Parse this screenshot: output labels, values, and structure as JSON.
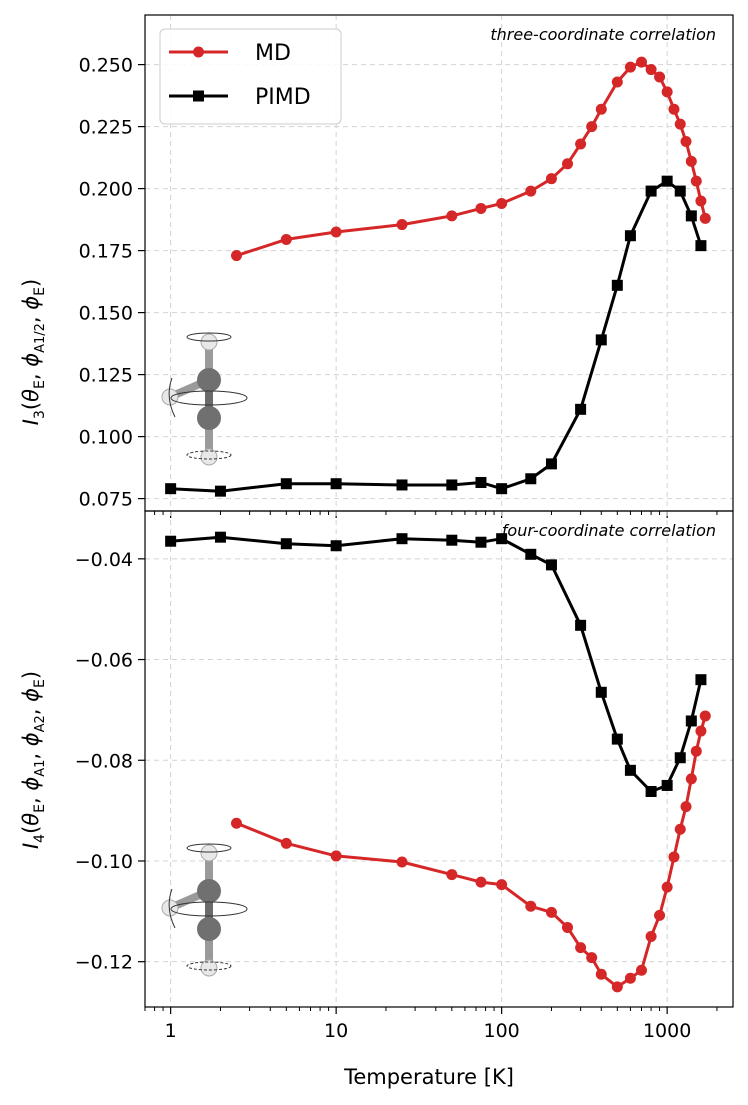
{
  "chart_data": [
    {
      "type": "line",
      "panel": "top",
      "annotation": "three-coordinate correlation",
      "ylabel": "I_3(θ_E, φ_A1/2, φ_E)",
      "ylabel_parts": {
        "main": "I",
        "sub": "3",
        "args": [
          "θ_E",
          "φ_A1/2",
          "φ_E"
        ]
      },
      "xscale": "log",
      "xlim": [
        0.7,
        2500
      ],
      "ylim": [
        0.07,
        0.27
      ],
      "yticks": [
        0.075,
        0.1,
        0.125,
        0.15,
        0.175,
        0.2,
        0.225,
        0.25
      ],
      "ytick_labels": [
        "0.075",
        "0.100",
        "0.125",
        "0.150",
        "0.175",
        "0.200",
        "0.225",
        "0.250"
      ],
      "legend": [
        "MD",
        "PIMD"
      ],
      "legend_position": "top-left",
      "grid": true,
      "series": [
        {
          "name": "MD",
          "color": "#d62728",
          "marker": "circle",
          "x": [
            2.5,
            5,
            10,
            25,
            50,
            75,
            100,
            150,
            200,
            250,
            300,
            350,
            400,
            500,
            600,
            700,
            800,
            900,
            1000,
            1100,
            1200,
            1300,
            1400,
            1500,
            1600,
            1700
          ],
          "y": [
            0.173,
            0.1795,
            0.1825,
            0.1855,
            0.189,
            0.192,
            0.194,
            0.199,
            0.204,
            0.21,
            0.218,
            0.225,
            0.232,
            0.243,
            0.249,
            0.251,
            0.248,
            0.245,
            0.239,
            0.232,
            0.226,
            0.219,
            0.211,
            0.203,
            0.195,
            0.188
          ]
        },
        {
          "name": "PIMD",
          "color": "#000000",
          "marker": "square",
          "x": [
            1,
            2,
            5,
            10,
            25,
            50,
            75,
            100,
            150,
            200,
            300,
            400,
            500,
            600,
            800,
            1000,
            1200,
            1400,
            1600
          ],
          "y": [
            0.079,
            0.078,
            0.081,
            0.081,
            0.0805,
            0.0805,
            0.0815,
            0.079,
            0.083,
            0.089,
            0.111,
            0.139,
            0.161,
            0.181,
            0.199,
            0.203,
            0.199,
            0.189,
            0.177
          ]
        }
      ]
    },
    {
      "type": "line",
      "panel": "bottom",
      "annotation": "four-coordinate correlation",
      "ylabel": "I_4(θ_E, φ_A1, φ_A2, φ_E)",
      "ylabel_parts": {
        "main": "I",
        "sub": "4",
        "args": [
          "θ_E",
          "φ_A1",
          "φ_A2",
          "φ_E"
        ]
      },
      "xlabel": "Temperature [K]",
      "xscale": "log",
      "xlim": [
        0.7,
        2500
      ],
      "ylim": [
        -0.129,
        -0.0305
      ],
      "yticks": [
        -0.12,
        -0.1,
        -0.08,
        -0.06,
        -0.04
      ],
      "ytick_labels": [
        "−0.12",
        "−0.10",
        "−0.08",
        "−0.06",
        "−0.04"
      ],
      "xticks": [
        1,
        10,
        100,
        1000
      ],
      "xtick_labels": [
        "1",
        "10",
        "100",
        "1000"
      ],
      "grid": true,
      "series": [
        {
          "name": "MD",
          "color": "#d62728",
          "marker": "circle",
          "x": [
            2.5,
            5,
            10,
            25,
            50,
            75,
            100,
            150,
            200,
            250,
            300,
            350,
            400,
            500,
            600,
            700,
            800,
            900,
            1000,
            1100,
            1200,
            1300,
            1400,
            1500,
            1600,
            1700
          ],
          "y": [
            -0.0925,
            -0.0965,
            -0.099,
            -0.1002,
            -0.1027,
            -0.1042,
            -0.1047,
            -0.109,
            -0.1102,
            -0.1132,
            -0.1172,
            -0.1192,
            -0.1225,
            -0.125,
            -0.1233,
            -0.1217,
            -0.115,
            -0.1108,
            -0.1052,
            -0.0992,
            -0.0937,
            -0.0892,
            -0.0837,
            -0.0782,
            -0.0742,
            -0.0712
          ]
        },
        {
          "name": "PIMD",
          "color": "#000000",
          "marker": "square",
          "x": [
            1,
            2,
            5,
            10,
            25,
            50,
            75,
            100,
            150,
            200,
            300,
            400,
            500,
            600,
            800,
            1000,
            1200,
            1400,
            1600
          ],
          "y": [
            -0.0365,
            -0.0357,
            -0.037,
            -0.0374,
            -0.036,
            -0.0363,
            -0.0367,
            -0.036,
            -0.0391,
            -0.0412,
            -0.0532,
            -0.0665,
            -0.0758,
            -0.082,
            -0.0862,
            -0.085,
            -0.0795,
            -0.0722,
            -0.064
          ]
        }
      ]
    }
  ]
}
